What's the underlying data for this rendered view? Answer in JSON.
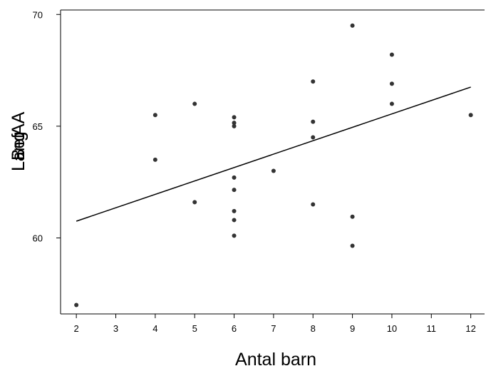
{
  "chart_data": {
    "type": "scatter",
    "title": "",
    "xlabel": "Antal barn",
    "ylabel_overlap": [
      "Läng",
      "Läng",
      "Bef",
      "AA"
    ],
    "xlim": [
      1.6,
      12.35
    ],
    "ylim": [
      56.6,
      70.2
    ],
    "x_ticks": [
      2,
      3,
      4,
      5,
      6,
      7,
      8,
      9,
      10,
      11,
      12
    ],
    "y_ticks": [
      60,
      65,
      70
    ],
    "grid": false,
    "legend": "none",
    "point_color": "#333333",
    "line_color": "#000000",
    "points": [
      {
        "x": 2,
        "y": 57.0
      },
      {
        "x": 4,
        "y": 65.5
      },
      {
        "x": 4,
        "y": 63.5
      },
      {
        "x": 5,
        "y": 66.0
      },
      {
        "x": 5,
        "y": 61.6
      },
      {
        "x": 6,
        "y": 65.4
      },
      {
        "x": 6,
        "y": 65.15
      },
      {
        "x": 6,
        "y": 65.0
      },
      {
        "x": 6,
        "y": 62.7
      },
      {
        "x": 6,
        "y": 62.15
      },
      {
        "x": 6,
        "y": 61.2
      },
      {
        "x": 6,
        "y": 60.8
      },
      {
        "x": 6,
        "y": 60.1
      },
      {
        "x": 7,
        "y": 63.0
      },
      {
        "x": 8,
        "y": 67.0
      },
      {
        "x": 8,
        "y": 65.2
      },
      {
        "x": 8,
        "y": 64.5
      },
      {
        "x": 8,
        "y": 61.5
      },
      {
        "x": 9,
        "y": 69.5
      },
      {
        "x": 9,
        "y": 60.95
      },
      {
        "x": 9,
        "y": 59.65
      },
      {
        "x": 10,
        "y": 68.2
      },
      {
        "x": 10,
        "y": 66.9
      },
      {
        "x": 10,
        "y": 66.0
      },
      {
        "x": 12,
        "y": 65.5
      }
    ],
    "fit_line": {
      "x": [
        2,
        12
      ],
      "y": [
        60.75,
        66.75
      ]
    }
  }
}
